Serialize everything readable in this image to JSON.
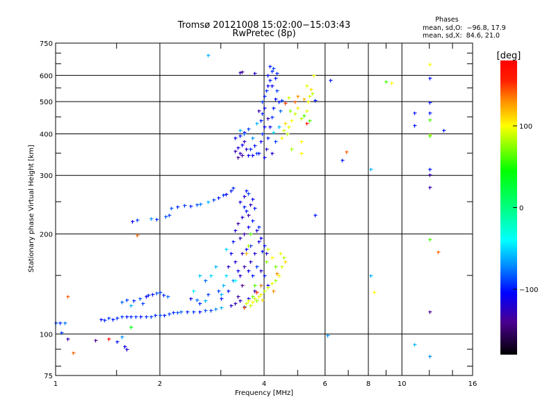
{
  "chart_data": {
    "type": "scatter",
    "title": "Tromsø 20121008 15:02:00−15:03:43",
    "subtitle": "RwPretec (8p)",
    "info": {
      "heading": "Phases",
      "o_line": "mean, sd,O:  −96.8, 17.9",
      "x_line": "mean, sd,X:  84.6, 21.0"
    },
    "xlabel": "Frequency [MHz]",
    "ylabel": "Stationary phase Virtual Height [km]",
    "xscale": "log",
    "yscale": "log",
    "xlim": [
      1,
      16
    ],
    "ylim": [
      75,
      750
    ],
    "xticks": [
      1,
      2,
      4,
      6,
      8,
      10,
      16
    ],
    "xtick_labels": [
      "1",
      "2",
      "4",
      "6",
      "8",
      "10",
      "16"
    ],
    "yticks": [
      75,
      100,
      200,
      300,
      400,
      500,
      600,
      750
    ],
    "ytick_labels": [
      "75",
      "100",
      "200",
      "300",
      "400",
      "500",
      "600",
      "750"
    ],
    "grid": true,
    "colorbar": {
      "label": "[deg]",
      "range": [
        -180,
        180
      ],
      "ticks": [
        100,
        0,
        -100
      ],
      "tick_labels": [
        "100",
        "0",
        "−100"
      ],
      "stops": [
        [
          -180,
          "#000000"
        ],
        [
          -140,
          "#4b0090"
        ],
        [
          -105,
          "#0000ff"
        ],
        [
          -70,
          "#0090ff"
        ],
        [
          -40,
          "#00ffff"
        ],
        [
          0,
          "#00ff80"
        ],
        [
          45,
          "#00ff00"
        ],
        [
          100,
          "#ffff00"
        ],
        [
          130,
          "#ff9000"
        ],
        [
          155,
          "#ff2000"
        ],
        [
          180,
          "#ff0000"
        ]
      ]
    },
    "point_format": [
      "frequency_MHz",
      "virtual_height_km",
      "phase_deg"
    ],
    "points": [
      [
        1.0,
        108,
        -85
      ],
      [
        1.03,
        108,
        -95
      ],
      [
        1.06,
        108,
        -75
      ],
      [
        1.04,
        101,
        -90
      ],
      [
        1.08,
        97,
        -130
      ],
      [
        1.35,
        111,
        -100
      ],
      [
        1.38,
        110,
        -95
      ],
      [
        1.42,
        112,
        -90
      ],
      [
        1.46,
        111,
        -100
      ],
      [
        1.5,
        112,
        -95
      ],
      [
        1.55,
        113,
        -90
      ],
      [
        1.6,
        113,
        -100
      ],
      [
        1.65,
        113,
        -95
      ],
      [
        1.7,
        113,
        -90
      ],
      [
        1.76,
        113,
        -100
      ],
      [
        1.82,
        113,
        -95
      ],
      [
        1.88,
        113,
        -90
      ],
      [
        1.94,
        114,
        -95
      ],
      [
        2.0,
        114,
        -85
      ],
      [
        2.06,
        114,
        -100
      ],
      [
        2.12,
        115,
        -90
      ],
      [
        2.18,
        116,
        -95
      ],
      [
        2.25,
        116,
        -85
      ],
      [
        2.3,
        117,
        -80
      ],
      [
        2.4,
        117,
        -95
      ],
      [
        2.5,
        117,
        -90
      ],
      [
        2.6,
        117,
        -100
      ],
      [
        2.7,
        118,
        -85
      ],
      [
        2.8,
        118,
        -90
      ],
      [
        2.9,
        119,
        -70
      ],
      [
        3.0,
        120,
        -60
      ],
      [
        1.55,
        125,
        -80
      ],
      [
        1.6,
        127,
        -90
      ],
      [
        1.68,
        126,
        -95
      ],
      [
        1.75,
        128,
        -85
      ],
      [
        1.78,
        124,
        -90
      ],
      [
        1.85,
        131,
        -95
      ],
      [
        1.9,
        132,
        -100
      ],
      [
        1.95,
        133,
        -85
      ],
      [
        2.0,
        134,
        -90
      ],
      [
        2.05,
        131,
        -95
      ],
      [
        2.1,
        130,
        -80
      ],
      [
        1.82,
        130,
        -110
      ],
      [
        1.65,
        122,
        -60
      ],
      [
        2.45,
        128,
        -110
      ],
      [
        2.55,
        127,
        -80
      ],
      [
        2.6,
        124,
        -95
      ],
      [
        2.7,
        126,
        -60
      ],
      [
        2.75,
        132,
        -90
      ],
      [
        1.5,
        95,
        -100
      ],
      [
        1.55,
        98,
        -70
      ],
      [
        1.58,
        92,
        -110
      ],
      [
        1.6,
        90,
        -120
      ],
      [
        1.3,
        96,
        -140
      ],
      [
        1.42,
        97,
        170
      ],
      [
        1.65,
        105,
        40
      ],
      [
        1.08,
        130,
        140
      ],
      [
        1.12,
        88,
        140
      ],
      [
        1.72,
        198,
        140
      ],
      [
        1.66,
        219,
        -110
      ],
      [
        1.72,
        221,
        -90
      ],
      [
        1.88,
        223,
        -70
      ],
      [
        1.95,
        222,
        -95
      ],
      [
        2.08,
        226,
        -85
      ],
      [
        2.12,
        228,
        -90
      ],
      [
        2.15,
        240,
        -85
      ],
      [
        2.25,
        242,
        -95
      ],
      [
        2.35,
        244,
        -90
      ],
      [
        2.45,
        243,
        -95
      ],
      [
        2.55,
        245,
        -85
      ],
      [
        2.62,
        246,
        -75
      ],
      [
        2.75,
        250,
        -60
      ],
      [
        2.85,
        254,
        -90
      ],
      [
        2.95,
        258,
        -100
      ],
      [
        3.05,
        262,
        -95
      ],
      [
        3.1,
        264,
        -110
      ],
      [
        3.2,
        270,
        -100
      ],
      [
        3.25,
        276,
        -95
      ],
      [
        3.2,
        122,
        -120
      ],
      [
        3.3,
        124,
        -130
      ],
      [
        3.4,
        126,
        -125
      ],
      [
        3.5,
        121,
        -120
      ],
      [
        3.35,
        130,
        -135
      ],
      [
        3.6,
        128,
        -110
      ],
      [
        3.15,
        135,
        -100
      ],
      [
        3.05,
        140,
        -60
      ],
      [
        3.1,
        150,
        -50
      ],
      [
        3.25,
        145,
        -70
      ],
      [
        3.4,
        150,
        -120
      ],
      [
        3.5,
        160,
        -130
      ],
      [
        3.6,
        155,
        -110
      ],
      [
        3.7,
        150,
        -100
      ],
      [
        3.8,
        160,
        -90
      ],
      [
        3.9,
        155,
        -120
      ],
      [
        4.0,
        150,
        -100
      ],
      [
        4.1,
        140,
        -110
      ],
      [
        3.3,
        165,
        -120
      ],
      [
        3.45,
        175,
        -130
      ],
      [
        3.55,
        180,
        -110
      ],
      [
        3.65,
        185,
        -100
      ],
      [
        3.75,
        175,
        -120
      ],
      [
        3.85,
        190,
        -115
      ],
      [
        3.95,
        178,
        -100
      ],
      [
        3.4,
        195,
        -125
      ],
      [
        3.5,
        200,
        -130
      ],
      [
        3.6,
        210,
        -110
      ],
      [
        3.35,
        215,
        -135
      ],
      [
        3.45,
        225,
        -120
      ],
      [
        3.55,
        235,
        -100
      ],
      [
        3.65,
        245,
        -125
      ],
      [
        3.7,
        255,
        -110
      ],
      [
        3.5,
        260,
        -120
      ],
      [
        3.55,
        270,
        -100
      ],
      [
        3.6,
        265,
        -90
      ],
      [
        3.7,
        220,
        -100
      ],
      [
        3.8,
        205,
        -120
      ],
      [
        3.9,
        195,
        -110
      ],
      [
        4.0,
        185,
        -100
      ],
      [
        4.05,
        175,
        -120
      ],
      [
        3.25,
        190,
        -100
      ],
      [
        3.2,
        175,
        -110
      ],
      [
        3.15,
        160,
        -120
      ],
      [
        2.9,
        160,
        -60
      ],
      [
        2.8,
        150,
        -50
      ],
      [
        2.7,
        145,
        -80
      ],
      [
        2.95,
        135,
        -90
      ],
      [
        3.0,
        128,
        -100
      ],
      [
        3.45,
        140,
        -140
      ],
      [
        3.75,
        135,
        -130
      ],
      [
        3.9,
        140,
        -90
      ],
      [
        3.35,
        155,
        -110
      ],
      [
        3.65,
        165,
        -125
      ],
      [
        3.5,
        242,
        -100
      ],
      [
        3.4,
        250,
        -110
      ],
      [
        3.6,
        228,
        -130
      ],
      [
        3.3,
        205,
        -120
      ],
      [
        3.75,
        240,
        -100
      ],
      [
        3.85,
        210,
        -95
      ],
      [
        3.0,
        132,
        -60
      ],
      [
        2.6,
        150,
        -55
      ],
      [
        2.5,
        135,
        -45
      ],
      [
        3.1,
        180,
        -50
      ],
      [
        3.3,
        145,
        -40
      ],
      [
        3.55,
        124,
        90
      ],
      [
        3.6,
        126,
        95
      ],
      [
        3.65,
        122,
        85
      ],
      [
        3.7,
        125,
        100
      ],
      [
        3.75,
        128,
        90
      ],
      [
        3.8,
        126,
        80
      ],
      [
        3.85,
        130,
        95
      ],
      [
        3.9,
        132,
        100
      ],
      [
        3.95,
        127,
        110
      ],
      [
        3.7,
        130,
        70
      ],
      [
        4.0,
        135,
        85
      ],
      [
        4.1,
        138,
        90
      ],
      [
        4.2,
        142,
        95
      ],
      [
        4.3,
        145,
        80
      ],
      [
        4.4,
        150,
        100
      ],
      [
        4.5,
        160,
        90
      ],
      [
        4.55,
        170,
        85
      ],
      [
        4.45,
        175,
        95
      ],
      [
        4.6,
        165,
        110
      ],
      [
        4.3,
        160,
        70
      ],
      [
        4.2,
        170,
        100
      ],
      [
        4.1,
        180,
        90
      ],
      [
        3.9,
        140,
        130
      ],
      [
        3.8,
        134,
        150
      ],
      [
        3.5,
        120,
        140
      ],
      [
        4.25,
        135,
        130
      ],
      [
        3.75,
        140,
        60
      ],
      [
        4.05,
        165,
        75
      ],
      [
        4.35,
        152,
        130
      ],
      [
        3.6,
        185,
        80
      ],
      [
        3.55,
        175,
        120
      ],
      [
        3.65,
        200,
        60
      ],
      [
        3.3,
        355,
        -130
      ],
      [
        3.35,
        365,
        -120
      ],
      [
        3.4,
        350,
        -125
      ],
      [
        3.45,
        372,
        -110
      ],
      [
        3.5,
        380,
        -130
      ],
      [
        3.55,
        360,
        -120
      ],
      [
        3.3,
        390,
        -110
      ],
      [
        3.4,
        395,
        -100
      ],
      [
        3.5,
        405,
        -120
      ],
      [
        3.6,
        345,
        -105
      ],
      [
        3.65,
        360,
        -95
      ],
      [
        3.7,
        345,
        -110
      ],
      [
        3.75,
        370,
        -100
      ],
      [
        3.8,
        350,
        -90
      ],
      [
        3.35,
        340,
        -140
      ],
      [
        3.45,
        345,
        -135
      ],
      [
        3.5,
        400,
        -80
      ],
      [
        3.6,
        415,
        -90
      ],
      [
        3.4,
        410,
        -60
      ],
      [
        3.7,
        390,
        -70
      ],
      [
        3.85,
        350,
        -100
      ],
      [
        3.9,
        380,
        -110
      ],
      [
        3.95,
        400,
        -95
      ],
      [
        4.0,
        420,
        -105
      ],
      [
        3.9,
        440,
        -100
      ],
      [
        3.95,
        460,
        -95
      ],
      [
        4.0,
        480,
        -110
      ],
      [
        3.95,
        500,
        -90
      ],
      [
        4.0,
        520,
        -100
      ],
      [
        4.05,
        540,
        -95
      ],
      [
        4.1,
        560,
        -110
      ],
      [
        4.15,
        580,
        -100
      ],
      [
        4.1,
        600,
        -105
      ],
      [
        4.2,
        620,
        -95
      ],
      [
        4.15,
        640,
        -100
      ],
      [
        4.25,
        630,
        -90
      ],
      [
        4.05,
        360,
        -120
      ],
      [
        4.1,
        390,
        -100
      ],
      [
        4.15,
        420,
        -110
      ],
      [
        4.2,
        450,
        -95
      ],
      [
        4.25,
        480,
        -100
      ],
      [
        4.3,
        510,
        -105
      ],
      [
        4.35,
        540,
        -90
      ],
      [
        4.2,
        560,
        -110
      ],
      [
        4.3,
        590,
        -100
      ],
      [
        4.35,
        610,
        -95
      ],
      [
        4.4,
        500,
        -100
      ],
      [
        4.45,
        470,
        -80
      ],
      [
        4.4,
        420,
        -60
      ],
      [
        4.3,
        380,
        -90
      ],
      [
        4.2,
        350,
        -120
      ],
      [
        4.0,
        340,
        -110
      ],
      [
        3.85,
        470,
        -130
      ],
      [
        3.8,
        430,
        -60
      ],
      [
        4.1,
        445,
        -130
      ],
      [
        4.25,
        405,
        -50
      ],
      [
        3.75,
        610,
        -120
      ],
      [
        3.45,
        615,
        -140
      ],
      [
        4.5,
        505,
        -90
      ],
      [
        4.5,
        390,
        100
      ],
      [
        4.55,
        410,
        90
      ],
      [
        4.6,
        430,
        110
      ],
      [
        4.65,
        400,
        85
      ],
      [
        4.7,
        420,
        95
      ],
      [
        4.8,
        440,
        100
      ],
      [
        4.9,
        460,
        90
      ],
      [
        5.0,
        480,
        105
      ],
      [
        5.1,
        445,
        85
      ],
      [
        5.2,
        455,
        60
      ],
      [
        5.3,
        470,
        95
      ],
      [
        5.35,
        500,
        100
      ],
      [
        5.4,
        520,
        90
      ],
      [
        5.5,
        530,
        85
      ],
      [
        5.45,
        545,
        110
      ],
      [
        5.3,
        560,
        95
      ],
      [
        5.2,
        510,
        120
      ],
      [
        5.0,
        520,
        130
      ],
      [
        4.9,
        500,
        140
      ],
      [
        4.75,
        470,
        75
      ],
      [
        4.6,
        495,
        150
      ],
      [
        5.4,
        440,
        60
      ],
      [
        5.6,
        505,
        -100
      ],
      [
        5.55,
        600,
        95
      ],
      [
        4.8,
        360,
        80
      ],
      [
        5.1,
        380,
        100
      ],
      [
        5.3,
        430,
        160
      ],
      [
        4.7,
        515,
        90
      ],
      [
        2.75,
        690,
        -60
      ],
      [
        3.4,
        612,
        -130
      ],
      [
        12.0,
        649,
        100
      ],
      [
        12.0,
        590,
        -100
      ],
      [
        12.0,
        498,
        -100
      ],
      [
        12.0,
        463,
        -100
      ],
      [
        12.0,
        441,
        60
      ],
      [
        12.0,
        397,
        100
      ],
      [
        12.0,
        396,
        60
      ],
      [
        12.0,
        314,
        -100
      ],
      [
        12.0,
        302,
        -130
      ],
      [
        12.0,
        277,
        -130
      ],
      [
        12.0,
        193,
        60
      ],
      [
        12.0,
        117,
        -140
      ],
      [
        12.0,
        86,
        -70
      ],
      [
        10.85,
        463,
        -100
      ],
      [
        10.85,
        425,
        -100
      ],
      [
        10.85,
        93,
        -60
      ],
      [
        13.2,
        410,
        -100
      ],
      [
        12.7,
        177,
        140
      ],
      [
        6.9,
        354,
        140
      ],
      [
        6.7,
        334,
        -100
      ],
      [
        8.1,
        313,
        -60
      ],
      [
        8.3,
        134,
        100
      ],
      [
        8.1,
        150,
        -60
      ],
      [
        6.1,
        99,
        -70
      ],
      [
        6.2,
        580,
        -100
      ],
      [
        9.0,
        575,
        60
      ],
      [
        9.3,
        570,
        100
      ],
      [
        5.6,
        228,
        -100
      ],
      [
        5.1,
        350,
        100
      ]
    ]
  }
}
